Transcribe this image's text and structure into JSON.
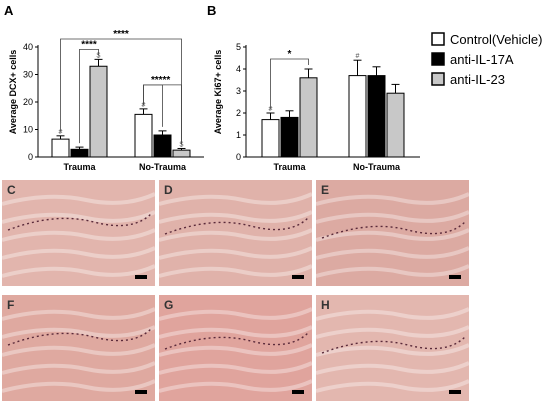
{
  "legend": {
    "entries": [
      {
        "label": "Control(Vehicle)",
        "color": "#ffffff"
      },
      {
        "label": "anti-IL-17A",
        "color": "#000000"
      },
      {
        "label": "anti-IL-23",
        "color": "#c8c8c8"
      }
    ]
  },
  "chart_data": [
    {
      "type": "bar",
      "panel": "A",
      "ylabel": "Average DCX+ cells",
      "ylim": [
        0,
        40
      ],
      "yticks": [
        0,
        10,
        20,
        30,
        40
      ],
      "categories": [
        "Trauma",
        "No-Trauma"
      ],
      "series": [
        {
          "name": "Control(Vehicle)",
          "values": [
            6.5,
            15.5
          ],
          "errors": [
            1.2,
            2.0
          ]
        },
        {
          "name": "anti-IL-17A",
          "values": [
            2.8,
            8.0
          ],
          "errors": [
            0.8,
            1.5
          ]
        },
        {
          "name": "anti-IL-23",
          "values": [
            33,
            2.5
          ],
          "errors": [
            2.5,
            0.6
          ]
        }
      ],
      "annotations": [
        {
          "text": "#",
          "category": 0,
          "series": 0
        },
        {
          "text": "$",
          "category": 0,
          "series": 2
        },
        {
          "text": "#",
          "category": 1,
          "series": 0
        },
        {
          "text": "$",
          "category": 1,
          "series": 2
        }
      ],
      "significance": [
        {
          "from": [
            0,
            0
          ],
          "to": [
            1,
            2
          ],
          "label": "****"
        },
        {
          "from": [
            0,
            1
          ],
          "to": [
            0,
            2
          ],
          "label": "****"
        },
        {
          "from": [
            1,
            0
          ],
          "to": [
            1,
            1
          ],
          "label": "*"
        },
        {
          "from": [
            1,
            0
          ],
          "to": [
            1,
            2
          ],
          "label": "****"
        }
      ]
    },
    {
      "type": "bar",
      "panel": "B",
      "ylabel": "Average Ki67+ cells",
      "ylim": [
        0,
        5
      ],
      "yticks": [
        0,
        1,
        2,
        3,
        4,
        5
      ],
      "categories": [
        "Trauma",
        "No-Trauma"
      ],
      "series": [
        {
          "name": "Control(Vehicle)",
          "values": [
            1.7,
            3.7
          ],
          "errors": [
            0.3,
            0.7
          ]
        },
        {
          "name": "anti-IL-17A",
          "values": [
            1.8,
            3.7
          ],
          "errors": [
            0.3,
            0.4
          ]
        },
        {
          "name": "anti-IL-23",
          "values": [
            3.6,
            2.9
          ],
          "errors": [
            0.4,
            0.4
          ]
        }
      ],
      "annotations": [
        {
          "text": "#",
          "category": 0,
          "series": 0
        },
        {
          "text": "#",
          "category": 1,
          "series": 0
        }
      ],
      "significance": [
        {
          "from": [
            0,
            0
          ],
          "to": [
            0,
            2
          ],
          "label": "*"
        }
      ]
    }
  ],
  "micrographs": [
    {
      "letter": "C",
      "tone": "#e2b5ad"
    },
    {
      "letter": "D",
      "tone": "#e0b2aa"
    },
    {
      "letter": "E",
      "tone": "#dcaaa2"
    },
    {
      "letter": "F",
      "tone": "#dfa9a0"
    },
    {
      "letter": "G",
      "tone": "#e0a49d"
    },
    {
      "letter": "H",
      "tone": "#e3b7af"
    }
  ]
}
